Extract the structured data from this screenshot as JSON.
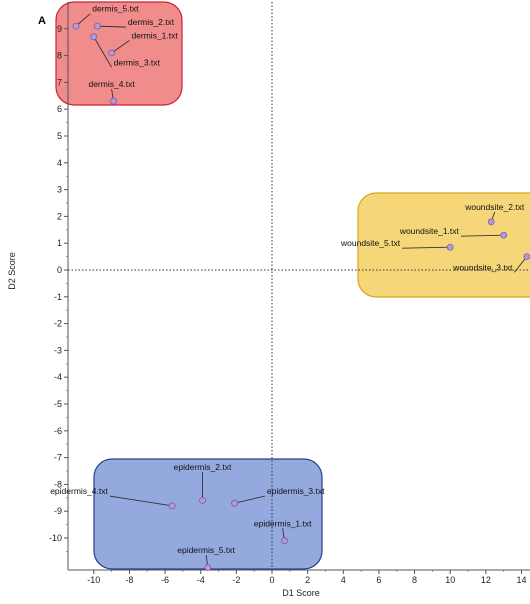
{
  "panel_label": "A",
  "chart_data": {
    "type": "scatter",
    "title": "",
    "xlabel": "D1 Score",
    "ylabel": "D2 Score",
    "xlim": [
      -11.2,
      14.8
    ],
    "ylim": [
      -11.2,
      9.9
    ],
    "x_ticks": [
      -10,
      -8,
      -6,
      -4,
      -2,
      0,
      2,
      4,
      6,
      8,
      10,
      12,
      14
    ],
    "y_ticks": [
      9,
      8,
      7,
      6,
      5,
      4,
      3,
      2,
      1,
      0,
      -1,
      -2,
      -3,
      -4,
      -5,
      -6,
      -7,
      -8,
      -9,
      -10
    ],
    "grid": false,
    "reference_lines": {
      "x": 0,
      "y": 0,
      "style": "dotted"
    },
    "groups": [
      {
        "name": "dermis",
        "color": "#f08c8c",
        "border": "#cc2233",
        "points": [
          {
            "label": "dermis_5.txt",
            "x": -11.0,
            "y": 9.1,
            "lx": -10.2,
            "ly": 9.6
          },
          {
            "label": "dermis_2.txt",
            "x": -9.8,
            "y": 9.1,
            "lx": -8.2,
            "ly": 9.1
          },
          {
            "label": "dermis_1.txt",
            "x": -9.0,
            "y": 8.1,
            "lx": -8.0,
            "ly": 8.6
          },
          {
            "label": "dermis_3.txt",
            "x": -10.0,
            "y": 8.7,
            "lx": -9.0,
            "ly": 7.6
          },
          {
            "label": "dermis_4.txt",
            "x": -8.9,
            "y": 6.3,
            "lx": -9.0,
            "ly": 6.8
          }
        ]
      },
      {
        "name": "woundsite",
        "color": "#f5d77a",
        "border": "#d9a51a",
        "points": [
          {
            "label": "woundsite_2.txt",
            "x": 12.3,
            "y": 1.8,
            "lx": 12.5,
            "ly": 2.2
          },
          {
            "label": "woundsite_1.txt",
            "x": 13.0,
            "y": 1.3,
            "lx": 10.6,
            "ly": 1.3
          },
          {
            "label": "woundsite_5.txt",
            "x": 10.0,
            "y": 0.85,
            "lx": 7.3,
            "ly": 0.85
          },
          {
            "label": "woundsite_3.txt",
            "x": 14.3,
            "y": 0.5,
            "lx": 13.6,
            "ly": -0.05
          },
          {
            "label": "",
            "x": 14.7,
            "y": 1.65,
            "lx": 14.7,
            "ly": 1.65
          }
        ]
      },
      {
        "name": "epidermis",
        "color": "#94a9de",
        "border": "#2a3f8f",
        "points": [
          {
            "label": "epidermis_2.txt",
            "x": -3.9,
            "y": -8.6,
            "lx": -3.9,
            "ly": -7.5
          },
          {
            "label": "epidermis_4.txt",
            "x": -5.6,
            "y": -8.8,
            "lx": -9.1,
            "ly": -8.4
          },
          {
            "label": "epidermis_3.txt",
            "x": -2.1,
            "y": -8.7,
            "lx": -0.4,
            "ly": -8.4
          },
          {
            "label": "epidermis_1.txt",
            "x": 0.7,
            "y": -10.1,
            "lx": 0.6,
            "ly": -9.6
          },
          {
            "label": "epidermis_5.txt",
            "x": -3.6,
            "y": -11.1,
            "lx": -3.7,
            "ly": -10.6
          }
        ]
      }
    ]
  }
}
